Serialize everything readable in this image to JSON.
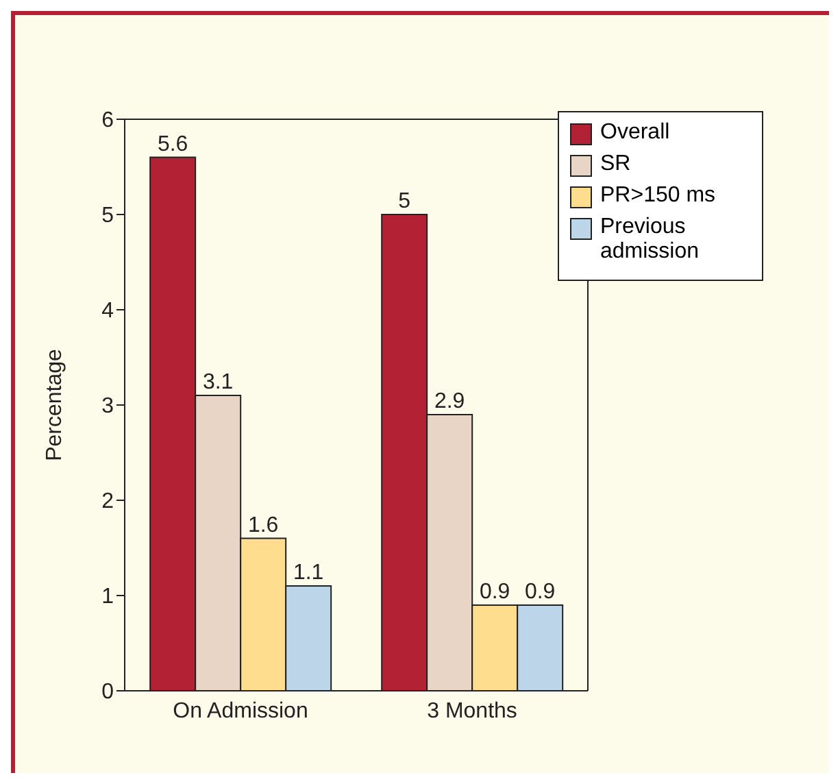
{
  "chart_data": {
    "type": "bar",
    "ylabel": "Percentage",
    "categories": [
      "On Admission",
      "3 Months"
    ],
    "series": [
      {
        "name": "Overall",
        "color": "#b22234",
        "values": [
          5.6,
          5
        ]
      },
      {
        "name": "SR",
        "color": "#e8d5c5",
        "values": [
          3.1,
          2.9
        ]
      },
      {
        "name": "PR>150 ms",
        "color": "#fedd8e",
        "values": [
          1.6,
          0.9
        ]
      },
      {
        "name": "Previous admission",
        "color": "#bdd5e8",
        "values": [
          1.1,
          0.9
        ]
      }
    ],
    "ylim": [
      0,
      6
    ],
    "yticks": [
      0,
      1,
      2,
      3,
      4,
      5,
      6
    ],
    "data_labels": true,
    "legend": "top right",
    "grid": false
  }
}
